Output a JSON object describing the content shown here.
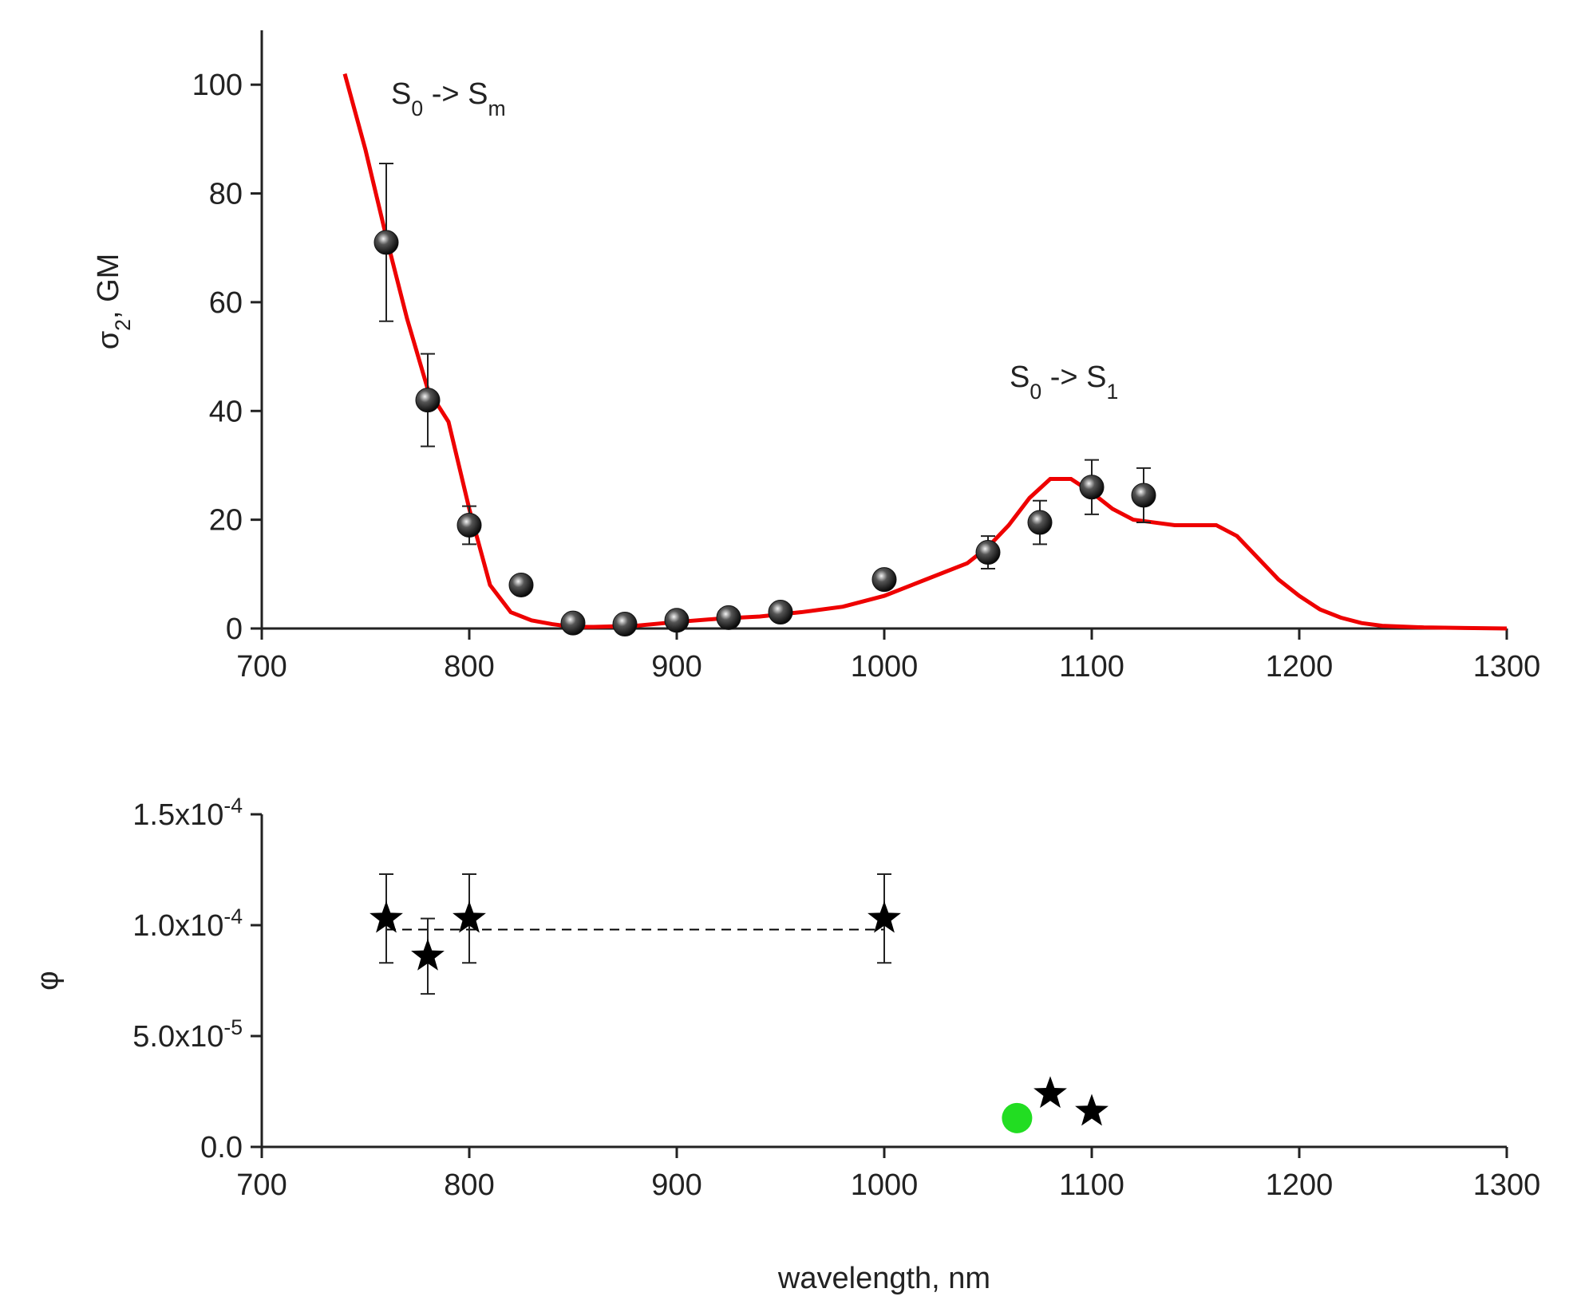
{
  "chart_data": [
    {
      "type": "scatter",
      "ylabel": [
        "σ",
        "2",
        ", GM"
      ],
      "annotations": [
        [
          "S",
          "0",
          " -> S",
          "m"
        ],
        [
          "S",
          "0",
          " -> S",
          "1"
        ]
      ],
      "xlim": [
        700,
        1300
      ],
      "xticks": [
        700,
        800,
        900,
        1000,
        1100,
        1200,
        1300
      ],
      "ylim": [
        0,
        110
      ],
      "yticks": [
        0,
        20,
        40,
        60,
        80,
        100
      ],
      "series": [
        {
          "kind": "line",
          "color": "#ee0000",
          "x": [
            740,
            750,
            760,
            770,
            780,
            790,
            800,
            810,
            820,
            830,
            840,
            850,
            860,
            880,
            900,
            920,
            940,
            960,
            980,
            1000,
            1020,
            1040,
            1050,
            1060,
            1070,
            1080,
            1090,
            1100,
            1110,
            1120,
            1130,
            1140,
            1160,
            1170,
            1180,
            1190,
            1200,
            1210,
            1220,
            1230,
            1240,
            1260,
            1280,
            1300
          ],
          "values": [
            102,
            88,
            72,
            57,
            44,
            38,
            22,
            8,
            3,
            1.5,
            0.8,
            0.3,
            0.3,
            0.5,
            1.2,
            1.8,
            2.2,
            3,
            4,
            6,
            9,
            12,
            15,
            19,
            24,
            27.5,
            27.5,
            25,
            22,
            20,
            19.5,
            19,
            19,
            17,
            13,
            9,
            6,
            3.5,
            2,
            1,
            0.5,
            0.2,
            0.1,
            0
          ]
        },
        {
          "kind": "points",
          "marker": "sphere",
          "color": "#111111",
          "x": [
            760,
            780,
            800,
            825,
            850,
            875,
            900,
            925,
            950,
            1000,
            1050,
            1075,
            1100,
            1125
          ],
          "values": [
            71,
            42,
            19,
            8,
            1,
            0.8,
            1.5,
            2,
            3,
            9,
            14,
            19.5,
            26,
            24.5
          ],
          "errors": [
            14.5,
            8.5,
            3.5,
            null,
            null,
            null,
            null,
            null,
            null,
            null,
            3,
            4,
            5,
            5
          ]
        }
      ]
    },
    {
      "type": "scatter",
      "xlabel": "wavelength, nm",
      "ylabel": [
        "φ"
      ],
      "xlim": [
        700,
        1300
      ],
      "xticks": [
        700,
        800,
        900,
        1000,
        1100,
        1200,
        1300
      ],
      "ylim": [
        0,
        0.00015
      ],
      "yticks": [
        {
          "value": 0,
          "label": "0.0"
        },
        {
          "value": 5e-05,
          "label": "5.0x10",
          "exp": "-5"
        },
        {
          "value": 0.0001,
          "label": "1.0x10",
          "exp": "-4"
        },
        {
          "value": 0.00015,
          "label": "1.5x10",
          "exp": "-4"
        }
      ],
      "series": [
        {
          "kind": "dashed",
          "color": "#000000",
          "x": [
            760,
            1000
          ],
          "values": [
            9.8e-05,
            9.8e-05
          ]
        },
        {
          "kind": "points",
          "marker": "star",
          "color": "#000000",
          "x": [
            760,
            780,
            800,
            1000,
            1080,
            1100
          ],
          "values": [
            0.000103,
            8.6e-05,
            0.000103,
            0.000103,
            2.4e-05,
            1.6e-05
          ],
          "errors": [
            2e-05,
            1.7e-05,
            2e-05,
            2e-05,
            null,
            null
          ]
        },
        {
          "kind": "points",
          "marker": "circle",
          "color": "#22dd22",
          "x": [
            1064
          ],
          "values": [
            1.3e-05
          ]
        }
      ]
    }
  ]
}
